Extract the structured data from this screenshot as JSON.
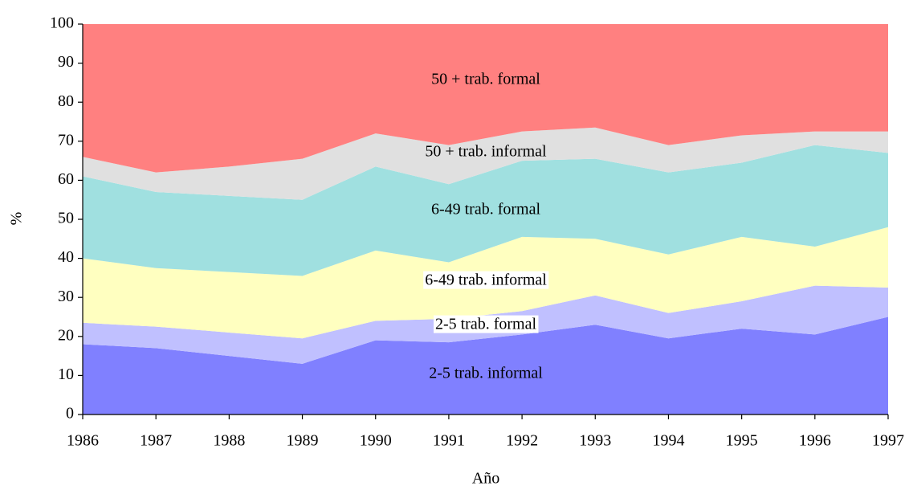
{
  "chart_data": {
    "type": "stacked_area",
    "x_label": "Año",
    "y_label": "%",
    "x": [
      1986,
      1987,
      1988,
      1989,
      1990,
      1991,
      1992,
      1993,
      1994,
      1995,
      1996,
      1997
    ],
    "series": [
      {
        "name": "2-5 trab. informal",
        "color": "#8080ff",
        "values": [
          18,
          17,
          15,
          13,
          19,
          18.5,
          20.5,
          23,
          19.5,
          22,
          20.5,
          25
        ]
      },
      {
        "name": "2-5 trab. formal",
        "color": "#c0c0ff",
        "values": [
          5.5,
          5.5,
          6,
          6.5,
          5,
          6,
          6,
          7.5,
          6.5,
          7,
          12.5,
          7.5
        ]
      },
      {
        "name": "6-49 trab. informal",
        "color": "#ffffc0",
        "values": [
          16.5,
          15,
          15.5,
          16,
          18,
          14.5,
          19,
          14.5,
          15,
          16.5,
          10,
          15.5
        ]
      },
      {
        "name": "6-49 trab. formal",
        "color": "#a0e0e0",
        "values": [
          21,
          19.5,
          19.5,
          19.5,
          21.5,
          20,
          19.5,
          20.5,
          21,
          19,
          26,
          19
        ]
      },
      {
        "name": "50 + trab. informal",
        "color": "#e0e0e0",
        "values": [
          5,
          5,
          7.5,
          10.5,
          8.5,
          10,
          7.5,
          8,
          7,
          7,
          3.5,
          5.5
        ]
      },
      {
        "name": "50 + trab. formal",
        "color": "#ff8080",
        "values": [
          34,
          38,
          36.5,
          34.5,
          28,
          31,
          27.5,
          26.5,
          31,
          28.5,
          27.5,
          27.5
        ]
      }
    ],
    "xlim": [
      1986,
      1997
    ],
    "xticks": [
      1986,
      1987,
      1988,
      1989,
      1990,
      1991,
      1992,
      1993,
      1994,
      1995,
      1996,
      1997
    ],
    "ylim": [
      0,
      100
    ],
    "yticks": [
      0,
      10,
      20,
      30,
      40,
      50,
      60,
      70,
      80,
      90,
      100
    ],
    "grid": false
  }
}
